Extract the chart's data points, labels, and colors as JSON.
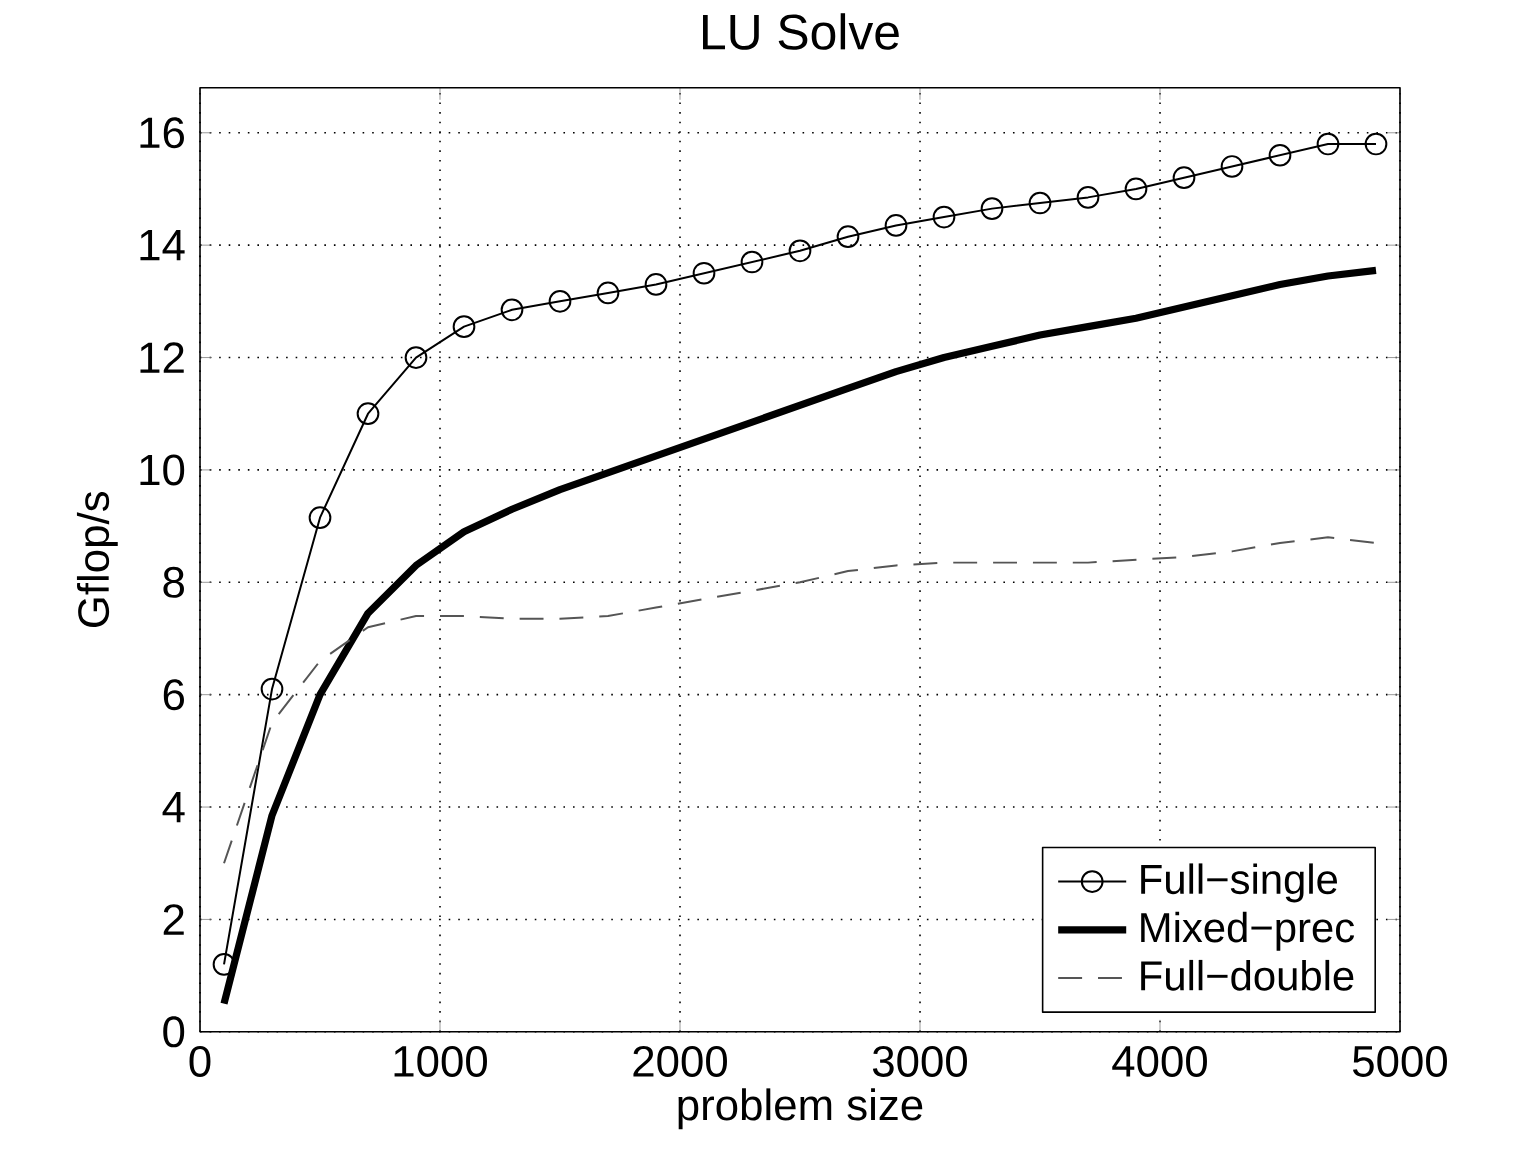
{
  "chart_data": {
    "type": "line",
    "title": "LU Solve",
    "xlabel": "problem size",
    "ylabel": "Gflop/s",
    "x": [
      100,
      300,
      500,
      700,
      900,
      1100,
      1300,
      1500,
      1700,
      1900,
      2100,
      2300,
      2500,
      2700,
      2900,
      3100,
      3300,
      3500,
      3700,
      3900,
      4100,
      4300,
      4500,
      4700,
      4900
    ],
    "series": [
      {
        "name": "Full−single",
        "color": "#000000",
        "marker": "circle",
        "line_style": "solid",
        "values": [
          1.2,
          6.1,
          9.15,
          11.0,
          12.0,
          12.55,
          12.85,
          13.0,
          13.15,
          13.3,
          13.5,
          13.7,
          13.9,
          14.15,
          14.35,
          14.5,
          14.65,
          14.75,
          14.85,
          15.0,
          15.2,
          15.4,
          15.6,
          15.8,
          15.8
        ]
      },
      {
        "name": "Mixed−prec",
        "color": "#000000",
        "marker": "none",
        "line_style": "solid",
        "values": [
          0.5,
          3.85,
          6.0,
          7.45,
          8.3,
          8.9,
          9.3,
          9.65,
          9.95,
          10.25,
          10.55,
          10.85,
          11.15,
          11.45,
          11.75,
          12.0,
          12.2,
          12.4,
          12.55,
          12.7,
          12.9,
          13.1,
          13.3,
          13.45,
          13.55
        ]
      },
      {
        "name": "Full−double",
        "color": "#555555",
        "marker": "none",
        "line_style": "dashed",
        "values": [
          3.0,
          5.5,
          6.6,
          7.2,
          7.4,
          7.4,
          7.35,
          7.35,
          7.4,
          7.55,
          7.7,
          7.85,
          8.0,
          8.2,
          8.3,
          8.35,
          8.35,
          8.35,
          8.35,
          8.4,
          8.45,
          8.55,
          8.7,
          8.8,
          8.7
        ]
      }
    ],
    "xlim": [
      0,
      5000
    ],
    "xticks": [
      0,
      1000,
      2000,
      3000,
      4000,
      5000
    ],
    "ylim": [
      0,
      16.8
    ],
    "yticks": [
      0,
      2,
      4,
      6,
      8,
      10,
      12,
      14,
      16
    ],
    "grid": true,
    "legend": "bottom right"
  }
}
